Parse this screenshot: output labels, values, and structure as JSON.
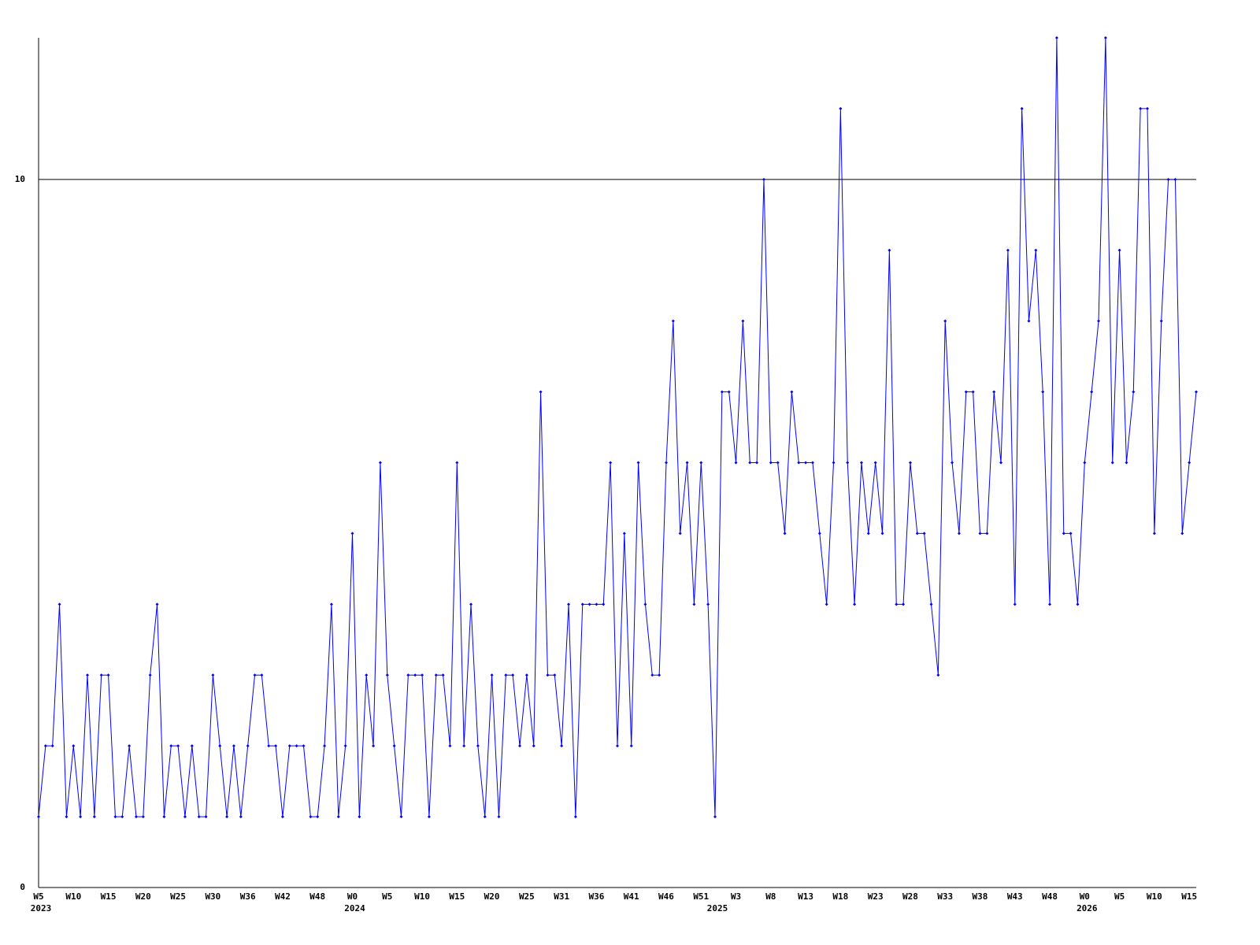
{
  "chart_data": {
    "type": "line",
    "categories": [
      "W5",
      null,
      null,
      null,
      null,
      "W10",
      null,
      null,
      null,
      null,
      "W15",
      null,
      null,
      null,
      null,
      "W20",
      null,
      null,
      null,
      null,
      "W25",
      null,
      null,
      null,
      null,
      "W30",
      null,
      null,
      null,
      null,
      "W36",
      null,
      null,
      null,
      null,
      "W42",
      null,
      null,
      null,
      null,
      "W48",
      null,
      null,
      null,
      null,
      "W0",
      null,
      null,
      null,
      null,
      "W5",
      null,
      null,
      null,
      null,
      "W10",
      null,
      null,
      null,
      null,
      "W15",
      null,
      null,
      null,
      null,
      "W20",
      null,
      null,
      null,
      null,
      "W25",
      null,
      null,
      null,
      null,
      "W31",
      null,
      null,
      null,
      null,
      "W36",
      null,
      null,
      null,
      null,
      "W41",
      null,
      null,
      null,
      null,
      "W46",
      null,
      null,
      null,
      null,
      "W51",
      null,
      null,
      null,
      null,
      "W3",
      null,
      null,
      null,
      null,
      "W8",
      null,
      null,
      null,
      null,
      "W13",
      null,
      null,
      null,
      null,
      "W18",
      null,
      null,
      null,
      null,
      "W23",
      null,
      null,
      null,
      null,
      "W28",
      null,
      null,
      null,
      null,
      "W33",
      null,
      null,
      null,
      null,
      "W38",
      null,
      null,
      null,
      null,
      "W43",
      null,
      null,
      null,
      null,
      "W48",
      null,
      null,
      null,
      null,
      "W0",
      null,
      null,
      null,
      null,
      "W5",
      null,
      null,
      null,
      null,
      "W10",
      null,
      null,
      null,
      null,
      "W15",
      null
    ],
    "year_labels": [
      "2023",
      null,
      null,
      null,
      null,
      null,
      null,
      null,
      null,
      null,
      null,
      null,
      null,
      null,
      null,
      null,
      null,
      null,
      null,
      null,
      null,
      null,
      null,
      null,
      null,
      null,
      null,
      null,
      null,
      null,
      null,
      null,
      null,
      null,
      null,
      null,
      null,
      null,
      null,
      null,
      null,
      null,
      null,
      null,
      null,
      "2024",
      null,
      null,
      null,
      null,
      null,
      null,
      null,
      null,
      null,
      null,
      null,
      null,
      null,
      null,
      null,
      null,
      null,
      null,
      null,
      null,
      null,
      null,
      null,
      null,
      null,
      null,
      null,
      null,
      null,
      null,
      null,
      null,
      null,
      null,
      null,
      null,
      null,
      null,
      null,
      null,
      null,
      null,
      null,
      null,
      null,
      null,
      null,
      null,
      null,
      null,
      null,
      "2025",
      null,
      null,
      null,
      null,
      null,
      null,
      null,
      null,
      null,
      null,
      null,
      null,
      null,
      null,
      null,
      null,
      null,
      null,
      null,
      null,
      null,
      null,
      null,
      null,
      null,
      null,
      null,
      null,
      null,
      null,
      null,
      null,
      null,
      null,
      null,
      null,
      null,
      null,
      null,
      null,
      null,
      null,
      null,
      null,
      null,
      null,
      null,
      null,
      null,
      null,
      null,
      null,
      "2026",
      null,
      null,
      null,
      null,
      null,
      null,
      null,
      null,
      null,
      null,
      null,
      null,
      null,
      null,
      null,
      null
    ],
    "values": [
      1,
      2,
      2,
      4,
      1,
      2,
      1,
      3,
      1,
      3,
      3,
      1,
      1,
      2,
      1,
      1,
      3,
      4,
      1,
      2,
      2,
      1,
      2,
      1,
      1,
      3,
      2,
      1,
      2,
      1,
      2,
      3,
      3,
      2,
      2,
      1,
      2,
      2,
      2,
      1,
      1,
      2,
      4,
      1,
      2,
      5,
      1,
      3,
      2,
      6,
      3,
      2,
      1,
      3,
      3,
      3,
      1,
      3,
      3,
      2,
      6,
      2,
      4,
      2,
      1,
      3,
      1,
      3,
      3,
      2,
      3,
      2,
      7,
      3,
      3,
      2,
      4,
      1,
      4,
      4,
      4,
      4,
      6,
      2,
      5,
      2,
      6,
      4,
      3,
      3,
      6,
      8,
      5,
      6,
      4,
      6,
      4,
      1,
      7,
      7,
      6,
      8,
      6,
      6,
      10,
      6,
      6,
      5,
      7,
      6,
      6,
      6,
      5,
      4,
      6,
      11,
      6,
      4,
      6,
      5,
      6,
      5,
      9,
      4,
      4,
      6,
      5,
      5,
      4,
      3,
      8,
      6,
      5,
      7,
      7,
      5,
      5,
      7,
      6,
      9,
      4,
      11,
      8,
      9,
      7,
      4,
      12,
      5,
      5,
      4,
      6,
      7,
      8,
      12,
      6,
      9,
      6,
      7,
      11,
      11,
      5,
      8,
      10,
      10,
      5,
      6,
      7
    ],
    "color": "#0000ff",
    "ylim": [
      0,
      12
    ],
    "yticks": [
      0,
      10
    ],
    "grid": true
  }
}
